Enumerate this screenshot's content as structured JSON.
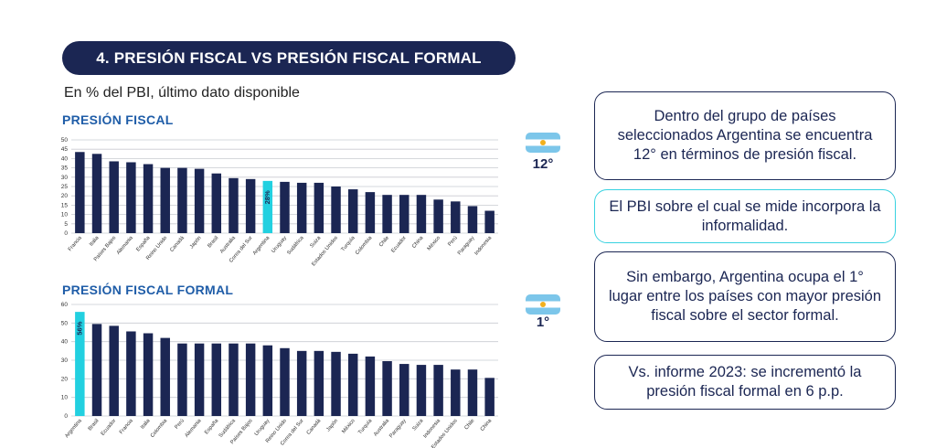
{
  "header": {
    "title": "4. PRESIÓN FISCAL VS PRESIÓN FISCAL FORMAL",
    "subtitle": "En % del PBI, último dato disponible"
  },
  "charts": [
    {
      "title": "PRESIÓN FISCAL",
      "rank": "12°"
    },
    {
      "title": "PRESIÓN FISCAL FORMAL",
      "rank": "1°"
    }
  ],
  "boxes": [
    "Dentro del grupo de países seleccionados Argentina se encuentra 12° en términos de presión fiscal.",
    "El PBI sobre el cual se mide incorpora la informalidad.",
    "Sin embargo, Argentina ocupa el 1° lugar entre los países con mayor presión fiscal sobre el sector formal.",
    "Vs. informe 2023: se incrementó la presión fiscal formal en 6 p.p."
  ],
  "colors": {
    "bar": "#1b2653",
    "highlight": "#22d0e0",
    "title_accent": "#1f5da8"
  },
  "chart_data": [
    {
      "type": "bar",
      "title": "PRESIÓN FISCAL",
      "categories": [
        "Francia",
        "Italia",
        "Países Bajos",
        "Alemania",
        "España",
        "Reino Unido",
        "Canadá",
        "Japón",
        "Brasil",
        "Australia",
        "Corea del Sur",
        "Argentina",
        "Uruguay",
        "Sudáfrica",
        "Suiza",
        "Estados Unidos",
        "Turquía",
        "Colombia",
        "Chile",
        "Ecuador",
        "China",
        "México",
        "Perú",
        "Paraguay",
        "Indonesia"
      ],
      "values": [
        43.5,
        42.5,
        38.5,
        38,
        37,
        35,
        35,
        34.5,
        32,
        29.5,
        29,
        28,
        27.5,
        27,
        27,
        25,
        23.5,
        22,
        20.5,
        20.5,
        20.5,
        18,
        17,
        14.5,
        12
      ],
      "highlight": "Argentina",
      "highlight_label": "28%",
      "ylim": [
        0,
        50
      ],
      "yticks": [
        0,
        5,
        10,
        15,
        20,
        25,
        30,
        35,
        40,
        45,
        50
      ]
    },
    {
      "type": "bar",
      "title": "PRESIÓN FISCAL FORMAL",
      "categories": [
        "Argentina",
        "Brasil",
        "Ecuador",
        "Francia",
        "Italia",
        "Colombia",
        "Perú",
        "Alemania",
        "España",
        "Sudáfrica",
        "Países Bajos",
        "Uruguay",
        "Reino Unido",
        "Corea del Sur",
        "Canadá",
        "Japón",
        "México",
        "Turquía",
        "Australia",
        "Paraguay",
        "Suiza",
        "Indonesia",
        "Estados Unidos",
        "Chile",
        "China"
      ],
      "values": [
        56,
        49.5,
        48.5,
        45.5,
        44.5,
        42,
        39,
        39,
        39,
        39,
        39,
        38,
        36.5,
        35,
        35,
        34.5,
        33.5,
        32,
        29.5,
        28,
        27.5,
        27.5,
        25,
        25,
        20.5
      ],
      "highlight": "Argentina",
      "highlight_label": "56%",
      "ylim": [
        0,
        60
      ],
      "yticks": [
        0,
        10,
        20,
        30,
        40,
        50,
        60
      ]
    }
  ]
}
